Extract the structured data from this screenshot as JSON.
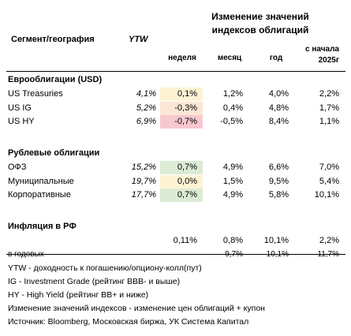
{
  "header": {
    "segment": "Сегмент/география",
    "ytw": "YTW",
    "group_title": [
      "Изменение значений",
      "индексов облигаций"
    ],
    "columns": {
      "week": "неделя",
      "month": "месяц",
      "year": "год",
      "ytd": [
        "с начала",
        "2025г"
      ]
    }
  },
  "sections": [
    {
      "title": "Еврооблигации (USD)",
      "rows": [
        {
          "label": "US Treasuries",
          "ytw": "4,1%",
          "week": "0,1%",
          "month": "1,2%",
          "year": "4,0%",
          "ytd": "2,2%",
          "week_color": "#fdf3d3"
        },
        {
          "label": "US IG",
          "ytw": "5,2%",
          "week": "-0,3%",
          "month": "0,4%",
          "year": "4,8%",
          "ytd": "1,7%",
          "week_color": "#fbe6d6"
        },
        {
          "label": "US HY",
          "ytw": "6,9%",
          "week": "-0,7%",
          "month": "-0,5%",
          "year": "8,4%",
          "ytd": "1,1%",
          "week_color": "#f8c8cf"
        }
      ]
    },
    {
      "title": "Рублевые облигации",
      "rows": [
        {
          "label": "ОФЗ",
          "ytw": "15,2%",
          "week": "0,7%",
          "month": "4,9%",
          "year": "6,6%",
          "ytd": "7,0%",
          "week_color": "#dcebd5"
        },
        {
          "label": "Муниципальные",
          "ytw": "19,7%",
          "week": "0,0%",
          "month": "1,5%",
          "year": "9,5%",
          "ytd": "5,4%",
          "week_color": "#fdf3d3"
        },
        {
          "label": "Корпоративные",
          "ytw": "17,7%",
          "week": "0,7%",
          "month": "4,9%",
          "year": "5,8%",
          "ytd": "10,1%",
          "week_color": "#dcebd5"
        }
      ]
    },
    {
      "title": "Инфляция в РФ",
      "rows": [
        {
          "week": "0,11%",
          "month": "0,8%",
          "year": "10,1%",
          "ytd": "2,2%"
        },
        {
          "label": "в годовых",
          "month": "9,7%",
          "year": "10,1%",
          "ytd": "11,7%"
        }
      ]
    }
  ],
  "notes": [
    "YTW - доходность к погашению/опциону-колл(пут)",
    "IG - Investment Grade (рейтинг BBB- и выше)",
    "HY - High Yield (рейтинг BB+ и ниже)",
    "Изменение значений индексов - изменение цен облигаций + купон",
    "Источник: Bloomberg, Московская биржа, УК Система Капитал"
  ]
}
